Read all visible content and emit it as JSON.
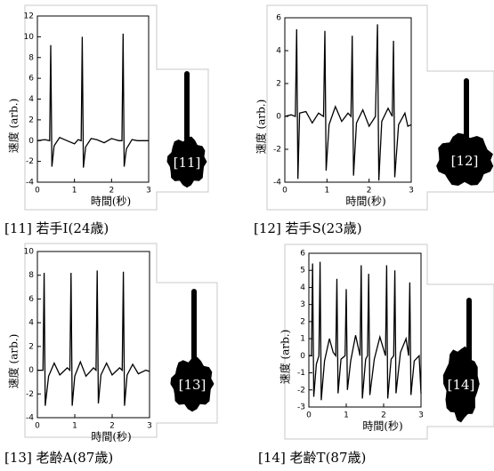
{
  "chart_data": [
    {
      "type": "line",
      "caption": "[11] 若手I(24歳)",
      "label": "[11]",
      "xlabel": "時間(秒)",
      "ylabel": "速度 (arb.)",
      "color": "#000000",
      "xlim": [
        0,
        3
      ],
      "xticks": [
        0,
        1,
        2,
        3
      ],
      "ylim": [
        -4,
        12
      ],
      "yticks": [
        -4,
        -2,
        0,
        2,
        4,
        6,
        8,
        10,
        12
      ],
      "x": [
        0,
        0.2,
        0.33,
        0.36,
        0.39,
        0.45,
        0.6,
        0.8,
        1.0,
        1.1,
        1.18,
        1.21,
        1.24,
        1.3,
        1.45,
        1.6,
        1.8,
        2.0,
        2.2,
        2.28,
        2.31,
        2.34,
        2.4,
        2.55,
        2.7,
        3.0
      ],
      "values": [
        0,
        0.1,
        0,
        9.2,
        -2.5,
        -0.5,
        0.3,
        0,
        -0.3,
        0.1,
        0,
        10,
        -2.6,
        -0.6,
        0.2,
        0.1,
        -0.2,
        0.2,
        0,
        0,
        10.3,
        -2.5,
        -0.8,
        0.1,
        0,
        0
      ]
    },
    {
      "type": "line",
      "caption": "[12] 若手S(23歳)",
      "label": "[12]",
      "xlabel": "時間(秒)",
      "ylabel": "速度 (arb.)",
      "color": "#000000",
      "xlim": [
        0,
        3
      ],
      "xticks": [
        0,
        1,
        2,
        3
      ],
      "ylim": [
        -4,
        6
      ],
      "yticks": [
        -4,
        -2,
        0,
        2,
        4,
        6
      ],
      "x": [
        0,
        0.15,
        0.25,
        0.28,
        0.31,
        0.35,
        0.5,
        0.65,
        0.8,
        0.92,
        0.95,
        0.98,
        1.05,
        1.2,
        1.35,
        1.5,
        1.57,
        1.6,
        1.63,
        1.7,
        1.85,
        2.0,
        2.15,
        2.2,
        2.23,
        2.3,
        2.45,
        2.55,
        2.58,
        2.61,
        2.7,
        2.85,
        2.92,
        3.0
      ],
      "values": [
        0,
        0.1,
        0,
        5.3,
        -3.8,
        0.2,
        0.3,
        -0.4,
        0.2,
        0,
        5.2,
        -3.3,
        -0.5,
        0.6,
        -0.3,
        0.2,
        0,
        4.9,
        -3.6,
        -0.4,
        0.4,
        -0.6,
        0,
        5.6,
        -3.9,
        -0.3,
        0.5,
        0,
        4.6,
        -3.7,
        -0.5,
        0.2,
        -0.6,
        -0.5
      ]
    },
    {
      "type": "line",
      "caption": "[13] 老齢A(87歳)",
      "label": "[13]",
      "xlabel": "時間(秒)",
      "ylabel": "速度 (arb.)",
      "color": "#000000",
      "xlim": [
        0,
        3
      ],
      "xticks": [
        0,
        1,
        2,
        3
      ],
      "ylim": [
        -4,
        10
      ],
      "yticks": [
        -4,
        -2,
        0,
        2,
        4,
        6,
        8,
        10
      ],
      "x": [
        0,
        0.15,
        0.18,
        0.21,
        0.3,
        0.45,
        0.6,
        0.8,
        0.87,
        0.9,
        0.93,
        1.0,
        1.15,
        1.3,
        1.5,
        1.57,
        1.6,
        1.63,
        1.7,
        1.85,
        2.0,
        2.2,
        2.27,
        2.3,
        2.33,
        2.4,
        2.55,
        2.7,
        2.9,
        3.0
      ],
      "values": [
        0,
        0,
        8.2,
        -3,
        -0.5,
        0.6,
        -0.4,
        0.2,
        0,
        8.2,
        -3,
        -0.5,
        0.7,
        -0.5,
        0.2,
        0,
        8.4,
        -2.8,
        -0.4,
        0.6,
        -0.4,
        0.2,
        0,
        8.3,
        -3,
        -0.4,
        0.5,
        -0.3,
        0,
        -0.1
      ]
    },
    {
      "type": "line",
      "caption": "[14] 老齢T(87歳)",
      "label": "[14]",
      "xlabel": "時間(秒)",
      "ylabel": "速度 (arb.)",
      "color": "#000000",
      "xlim": [
        0,
        3
      ],
      "xticks": [
        0,
        1,
        2,
        3
      ],
      "ylim": [
        -3,
        6
      ],
      "yticks": [
        -3,
        -2,
        -1,
        0,
        1,
        2,
        3,
        4,
        5,
        6
      ],
      "x": [
        0,
        0.07,
        0.1,
        0.13,
        0.2,
        0.27,
        0.3,
        0.33,
        0.42,
        0.55,
        0.65,
        0.72,
        0.75,
        0.78,
        0.86,
        0.97,
        1.0,
        1.03,
        1.12,
        1.25,
        1.37,
        1.4,
        1.43,
        1.52,
        1.57,
        1.6,
        1.63,
        1.75,
        1.9,
        2.05,
        2.08,
        2.11,
        2.2,
        2.27,
        2.3,
        2.33,
        2.45,
        2.6,
        2.67,
        2.7,
        2.73,
        2.82,
        2.95,
        3.0
      ],
      "values": [
        0,
        0,
        5.4,
        -2.4,
        -0.5,
        0,
        5.5,
        -2.6,
        -0.3,
        1.0,
        0.2,
        0,
        4.5,
        -2.2,
        -0.2,
        0,
        3.9,
        -2,
        -0.3,
        1.2,
        0,
        5.3,
        -2.5,
        -0.2,
        0,
        4.8,
        -2.3,
        -0.2,
        1.1,
        0,
        5.3,
        -2.5,
        -0.2,
        0,
        5.0,
        -2.2,
        0.2,
        1.0,
        0,
        4.3,
        -2.3,
        -0.3,
        0,
        -2.2
      ]
    }
  ]
}
